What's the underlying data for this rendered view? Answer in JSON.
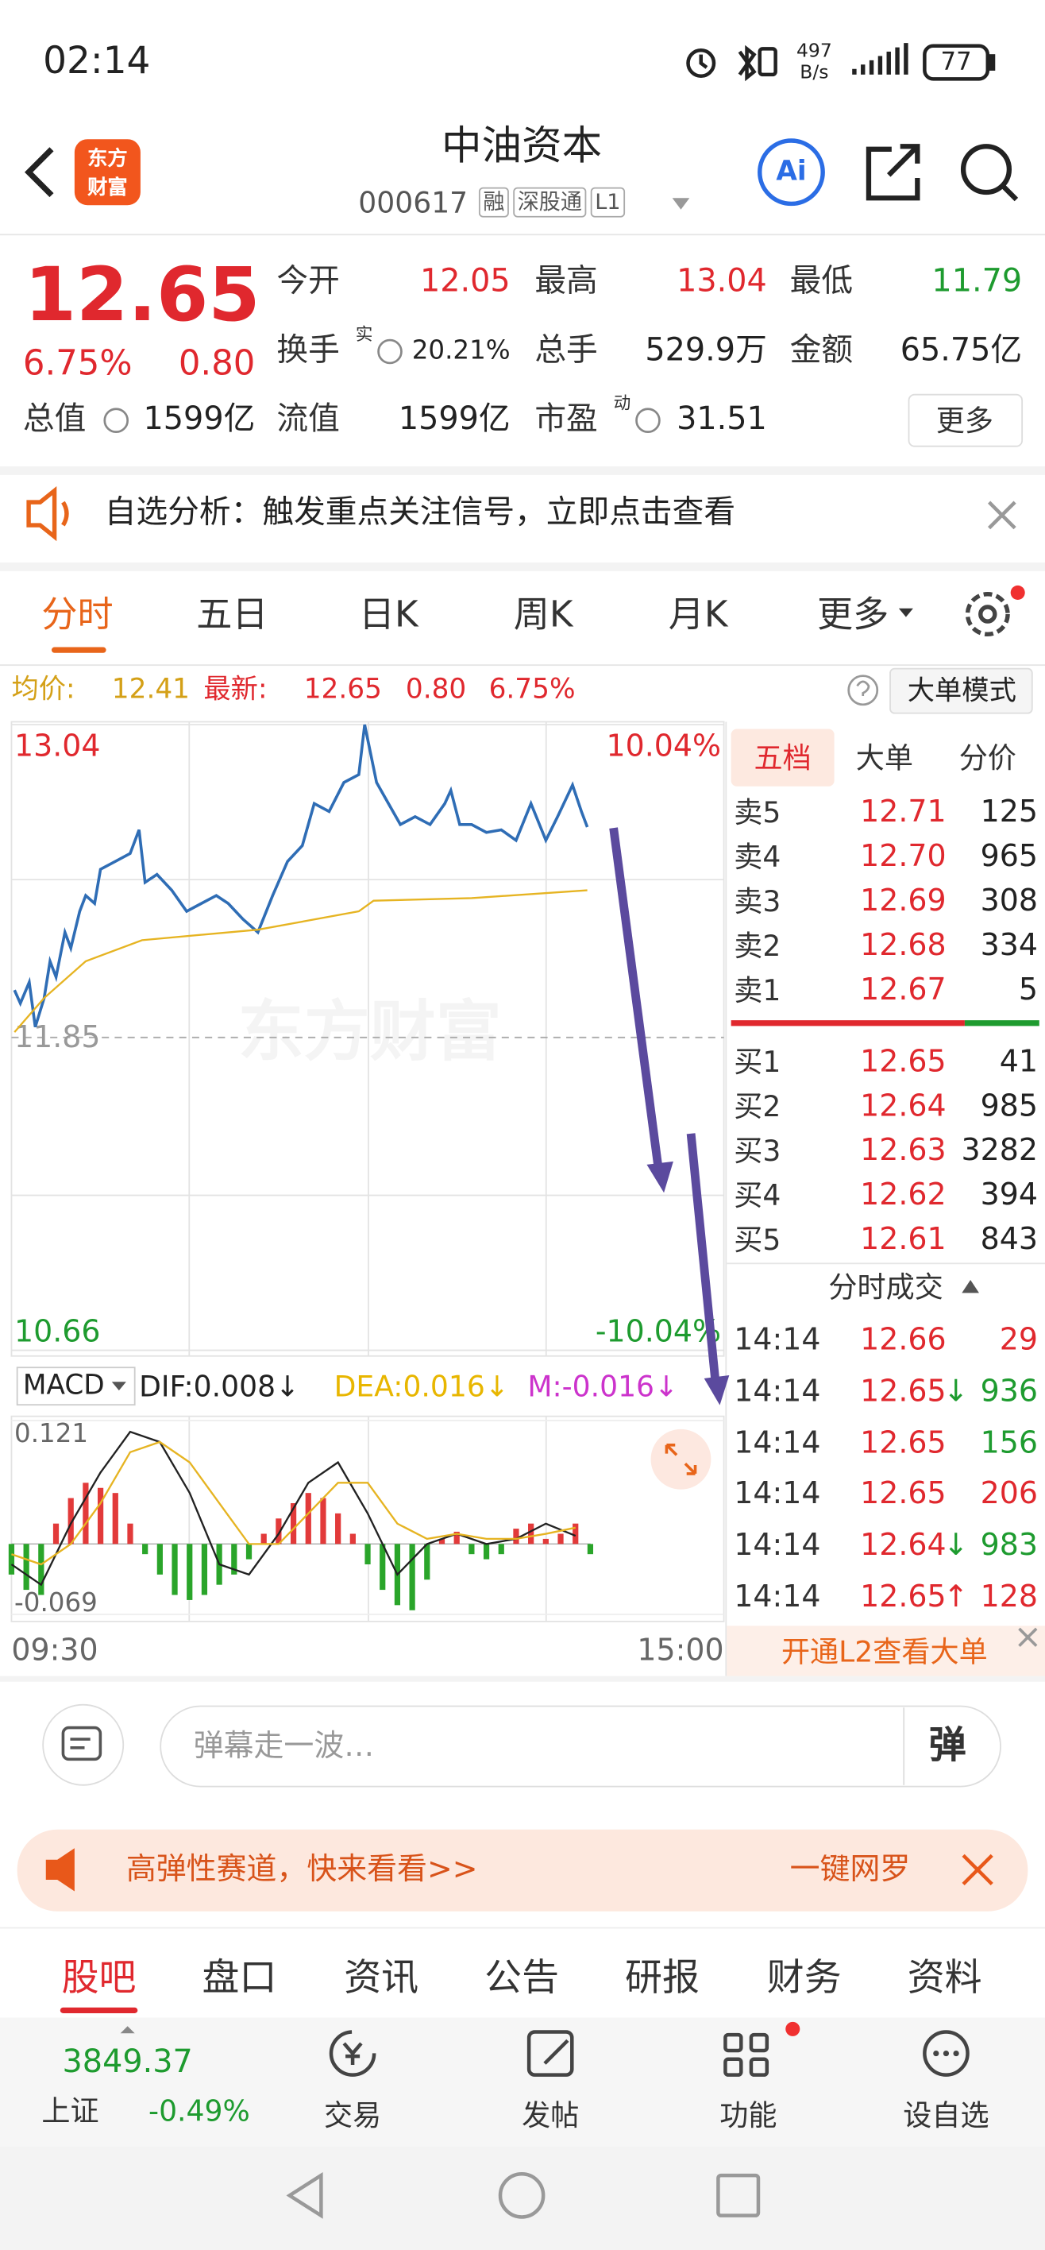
{
  "status_bar": {
    "time": "02:14",
    "net_speed": "497",
    "net_unit": "B/s",
    "battery": "77"
  },
  "header": {
    "logo": [
      "东方",
      "财富"
    ],
    "title": "中油资本",
    "code": "000617",
    "tags": [
      "融",
      "深股通",
      "L1"
    ],
    "ai": "Ai"
  },
  "quote": {
    "price": "12.65",
    "change_pct": "6.75%",
    "change": "0.80",
    "stats": [
      {
        "label": "今开",
        "value": "12.05",
        "color": "#e0282e"
      },
      {
        "label": "最高",
        "value": "13.04",
        "color": "#e0282e"
      },
      {
        "label": "最低",
        "value": "11.79",
        "color": "#1e9b2f"
      },
      {
        "label": "换手",
        "sup": "实",
        "value": "20.21%",
        "color": "#222222"
      },
      {
        "label": "总手",
        "value": "529.9万",
        "color": "#222222"
      },
      {
        "label": "金额",
        "value": "65.75亿",
        "color": "#222222"
      },
      {
        "label": "总值",
        "value": "1599亿",
        "color": "#222222"
      },
      {
        "label": "流值",
        "value": "1599亿",
        "color": "#222222"
      },
      {
        "label": "市盈",
        "sup": "动",
        "value": "31.51",
        "color": "#222222"
      }
    ],
    "more": "更多"
  },
  "alert": "自选分析：触发重点关注信号，立即点击查看",
  "chart_tabs": [
    "分时",
    "五日",
    "日K",
    "周K",
    "月K",
    "更多"
  ],
  "info_bar": {
    "avg_label": "均价:",
    "avg": "12.41",
    "last_label": "最新:",
    "last": "12.65",
    "change": "0.80",
    "change_pct": "6.75%",
    "mode": "大单模式"
  },
  "chart_data": [
    {
      "type": "line",
      "watermark": "东方财富",
      "xlim": [
        0,
        240
      ],
      "x_labels": [
        "09:30",
        "15:00"
      ],
      "ylim": [
        10.66,
        13.04
      ],
      "yticks": [
        10.66,
        11.85,
        13.04
      ],
      "ytick_colors": [
        "#1e9b2f",
        "#999999",
        "#e0282e"
      ],
      "pct_labels": [
        "10.04%",
        "-10.04%"
      ],
      "series": [
        {
          "color": "#2f6db5",
          "x": [
            1,
            3,
            6,
            8,
            11,
            13,
            15,
            18,
            20,
            23,
            25,
            28,
            30,
            35,
            40,
            43,
            45,
            49,
            54,
            59,
            64,
            69,
            73,
            78,
            83,
            88,
            93,
            98,
            102,
            107,
            112,
            117,
            119,
            123,
            127,
            131,
            136,
            141,
            146,
            148,
            151,
            155,
            160,
            165,
            170,
            175,
            180,
            184,
            189,
            192,
            194
          ],
          "values": [
            12.03,
            11.98,
            12.06,
            11.89,
            12.0,
            12.14,
            12.08,
            12.25,
            12.19,
            12.33,
            12.39,
            12.36,
            12.49,
            12.52,
            12.55,
            12.64,
            12.44,
            12.47,
            12.41,
            12.33,
            12.36,
            12.39,
            12.36,
            12.3,
            12.25,
            12.39,
            12.52,
            12.58,
            12.74,
            12.71,
            12.82,
            12.85,
            13.04,
            12.82,
            12.74,
            12.66,
            12.69,
            12.66,
            12.74,
            12.79,
            12.66,
            12.66,
            12.63,
            12.64,
            12.6,
            12.74,
            12.6,
            12.69,
            12.81,
            12.71,
            12.65
          ]
        },
        {
          "color": "#e6b422",
          "x": [
            1,
            11,
            25,
            44,
            83,
            117,
            122,
            155,
            194
          ],
          "values": [
            11.87,
            12.0,
            12.14,
            12.22,
            12.26,
            12.33,
            12.37,
            12.38,
            12.41
          ]
        }
      ]
    },
    {
      "type": "bar",
      "label": "MACD",
      "dif_label": "DIF:0.008↓",
      "dea_label": "DEA:0.016↓",
      "m_label": "M:-0.016↓",
      "xlim": [
        0,
        240
      ],
      "ylim": [
        -0.069,
        0.121
      ],
      "yticks": [
        -0.069,
        0.121
      ],
      "colors": {
        "up": "#e23a3a",
        "down": "#2aa52a"
      },
      "x": [
        0,
        5,
        10,
        15,
        20,
        25,
        30,
        35,
        40,
        45,
        50,
        55,
        60,
        65,
        70,
        75,
        80,
        85,
        90,
        95,
        100,
        105,
        110,
        115,
        120,
        125,
        130,
        135,
        140,
        145,
        150,
        155,
        160,
        165,
        170,
        175,
        180,
        185,
        190,
        195
      ],
      "values": [
        -0.03,
        -0.045,
        -0.05,
        0.02,
        0.045,
        0.06,
        0.055,
        0.05,
        0.02,
        -0.01,
        -0.03,
        -0.05,
        -0.055,
        -0.05,
        -0.04,
        -0.03,
        -0.015,
        0.01,
        0.025,
        0.04,
        0.05,
        0.045,
        0.03,
        0.01,
        -0.02,
        -0.045,
        -0.06,
        -0.065,
        -0.035,
        0.005,
        0.012,
        -0.01,
        -0.015,
        -0.01,
        0.015,
        0.02,
        0.005,
        0.01,
        0.02,
        -0.01
      ],
      "lines": [
        {
          "color": "#222222",
          "x": [
            0,
            10,
            20,
            30,
            40,
            50,
            60,
            70,
            80,
            90,
            100,
            110,
            120,
            130,
            140,
            150,
            160,
            170,
            180,
            190
          ],
          "values": [
            -0.02,
            -0.04,
            0.02,
            0.07,
            0.11,
            0.1,
            0.05,
            -0.02,
            -0.03,
            0.01,
            0.06,
            0.08,
            0.03,
            -0.03,
            0.0,
            0.01,
            0.0,
            0.005,
            0.02,
            0.008
          ]
        },
        {
          "color": "#e6b422",
          "x": [
            0,
            10,
            20,
            30,
            40,
            50,
            60,
            70,
            80,
            90,
            100,
            110,
            120,
            130,
            140,
            150,
            160,
            170,
            180,
            190
          ],
          "values": [
            -0.01,
            -0.02,
            0.0,
            0.04,
            0.09,
            0.1,
            0.08,
            0.04,
            0.0,
            0.0,
            0.03,
            0.06,
            0.06,
            0.02,
            0.005,
            0.01,
            0.005,
            0.005,
            0.01,
            0.016
          ]
        }
      ]
    }
  ],
  "order_book": {
    "tabs": [
      "五档",
      "大单",
      "分价"
    ],
    "asks": [
      {
        "label": "卖5",
        "price": "12.71",
        "volume": "125"
      },
      {
        "label": "卖4",
        "price": "12.70",
        "volume": "965"
      },
      {
        "label": "卖3",
        "price": "12.69",
        "volume": "308"
      },
      {
        "label": "卖2",
        "price": "12.68",
        "volume": "334"
      },
      {
        "label": "卖1",
        "price": "12.67",
        "volume": "5"
      }
    ],
    "bids": [
      {
        "label": "买1",
        "price": "12.65",
        "volume": "41"
      },
      {
        "label": "买2",
        "price": "12.64",
        "volume": "985"
      },
      {
        "label": "买3",
        "price": "12.63",
        "volume": "3282"
      },
      {
        "label": "买4",
        "price": "12.62",
        "volume": "394"
      },
      {
        "label": "买5",
        "price": "12.61",
        "volume": "843"
      }
    ]
  },
  "trades": {
    "title": "分时成交",
    "rows": [
      {
        "time": "14:14",
        "price": "12.66",
        "volume": "29",
        "color": "#e0282e"
      },
      {
        "time": "14:14",
        "price": "12.65",
        "arrow": "↓",
        "arrow_color": "#1e9b2f",
        "volume": "936",
        "color": "#1e9b2f"
      },
      {
        "time": "14:14",
        "price": "12.65",
        "volume": "156",
        "color": "#1e9b2f"
      },
      {
        "time": "14:14",
        "price": "12.65",
        "volume": "206",
        "color": "#e0282e"
      },
      {
        "time": "14:14",
        "price": "12.64",
        "arrow": "↓",
        "arrow_color": "#1e9b2f",
        "volume": "983",
        "color": "#1e9b2f"
      },
      {
        "time": "14:14",
        "price": "12.65",
        "arrow": "↑",
        "arrow_color": "#e0282e",
        "volume": "128",
        "color": "#e0282e"
      }
    ],
    "promo": "开通L2查看大单"
  },
  "comment": {
    "placeholder": "弹幕走一波…",
    "button": "弹"
  },
  "ad": {
    "text": "高弹性赛道，快来看看>>",
    "action": "一键网罗"
  },
  "sections": [
    "股吧",
    "盘口",
    "资讯",
    "公告",
    "研报",
    "财务",
    "资料"
  ],
  "bottom_nav": {
    "index": {
      "value": "3849.37",
      "name": "上证",
      "change": "-0.49%"
    },
    "items": [
      "交易",
      "发帖",
      "功能",
      "设自选"
    ]
  }
}
